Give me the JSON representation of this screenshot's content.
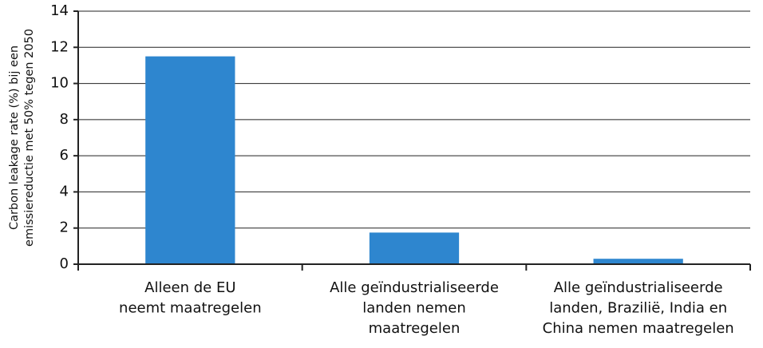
{
  "chart_data": {
    "type": "bar",
    "ylabel": [
      "Carbon leakage rate (%) bij een",
      "emissiereductie met 50% tegen 2050"
    ],
    "categories": [
      [
        "Alleen de EU",
        "neemt maatregelen"
      ],
      [
        "Alle geïndustrialiseerde",
        "landen nemen",
        "maatregelen"
      ],
      [
        "Alle geïndustrialiseerde",
        "landen, Brazilië, India en",
        "China nemen maatregelen"
      ]
    ],
    "values": [
      11.5,
      1.75,
      0.3
    ],
    "color": "#2e86cf",
    "ylim": [
      0,
      14
    ],
    "yticks": [
      0,
      2,
      4,
      6,
      8,
      10,
      12,
      14
    ],
    "grid": true
  }
}
